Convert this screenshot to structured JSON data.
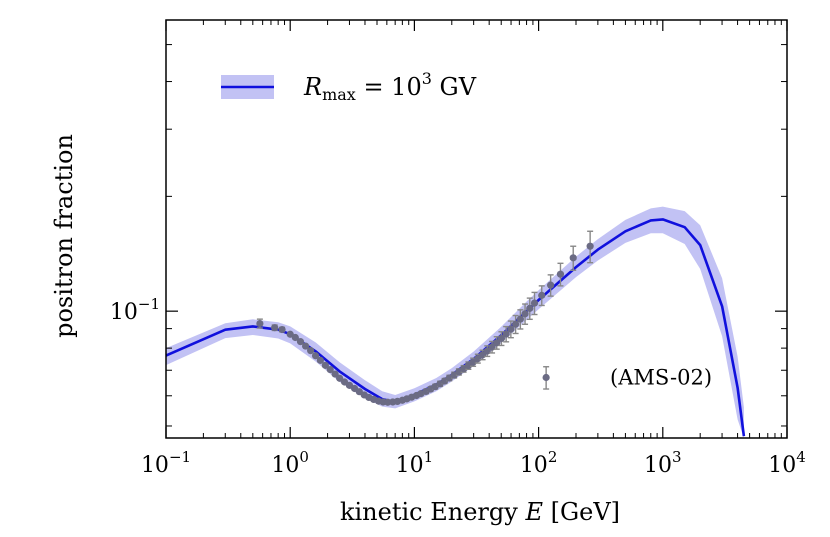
{
  "chart_data": {
    "type": "line",
    "title": "",
    "xlabel": "kinetic Energy E [GeV]",
    "xlabel_parts": {
      "text": "kinetic Energy ",
      "var": "E",
      "unit": " [GeV]"
    },
    "ylabel": "positron fraction",
    "xscale": "log",
    "yscale": "log",
    "xlim": [
      0.1,
      10000
    ],
    "ylim": [
      0.0465,
      0.58
    ],
    "grid": false,
    "x_ticks": [
      {
        "base": "10",
        "exp": "−1"
      },
      {
        "base": "10",
        "exp": "0"
      },
      {
        "base": "10",
        "exp": "1"
      },
      {
        "base": "10",
        "exp": "2"
      },
      {
        "base": "10",
        "exp": "3"
      },
      {
        "base": "10",
        "exp": "4"
      }
    ],
    "y_ticks": [
      {
        "base": "10",
        "exp": "−1",
        "value": 0.1
      }
    ],
    "legend": {
      "placement": "top-left",
      "entry": {
        "var": "R",
        "sub": "max",
        "eq": " = 10",
        "exp": "3",
        "unit": " GV"
      }
    },
    "annotation": {
      "text": "(AMS-02)",
      "placement": "lower-right"
    },
    "series": [
      {
        "name": "R_max = 10^3 GV",
        "style": "line",
        "color": "#1010dd",
        "band_color": "#c2c2f4",
        "x": [
          0.1,
          0.3,
          0.5,
          0.8,
          1,
          1.6,
          2.5,
          4,
          5.5,
          7,
          10,
          15,
          20,
          30,
          50,
          80,
          100,
          200,
          300,
          500,
          800,
          1000,
          1500,
          2000,
          3000,
          4000,
          4500
        ],
        "values": [
          0.0765,
          0.0894,
          0.0912,
          0.0894,
          0.087,
          0.0785,
          0.0695,
          0.0625,
          0.0588,
          0.0578,
          0.0604,
          0.0642,
          0.0681,
          0.075,
          0.0865,
          0.1,
          0.107,
          0.1305,
          0.145,
          0.162,
          0.173,
          0.174,
          0.166,
          0.149,
          0.103,
          0.063,
          0.047
        ],
        "band_low": [
          0.0722,
          0.085,
          0.0866,
          0.0848,
          0.0823,
          0.0738,
          0.0652,
          0.0591,
          0.0562,
          0.0556,
          0.058,
          0.0617,
          0.0654,
          0.0718,
          0.0825,
          0.0948,
          0.1012,
          0.1228,
          0.1358,
          0.151,
          0.16,
          0.16,
          0.15,
          0.129,
          0.086,
          0.052,
          0.0465
        ],
        "band_high": [
          0.08,
          0.093,
          0.0952,
          0.0935,
          0.0912,
          0.0828,
          0.0735,
          0.0659,
          0.0617,
          0.0603,
          0.0628,
          0.0668,
          0.0709,
          0.0784,
          0.091,
          0.106,
          0.1135,
          0.139,
          0.1545,
          0.1735,
          0.186,
          0.188,
          0.183,
          0.168,
          0.122,
          0.076,
          0.056
        ]
      },
      {
        "name": "AMS-02",
        "style": "scatter",
        "color": "#6b6b84",
        "error_color": "#888888",
        "x": [
          0.57,
          0.75,
          0.86,
          1.0,
          1.1,
          1.21,
          1.33,
          1.46,
          1.6,
          1.75,
          1.92,
          2.1,
          2.3,
          2.5,
          2.74,
          3.0,
          3.3,
          3.6,
          3.95,
          4.3,
          4.7,
          5.15,
          5.6,
          6.1,
          6.7,
          7.3,
          8.0,
          8.7,
          9.5,
          10.4,
          11.3,
          12.4,
          13.5,
          14.7,
          16.1,
          17.5,
          19.1,
          20.9,
          22.8,
          24.9,
          27.2,
          29.7,
          32.4,
          35.4,
          38.6,
          42.2,
          46.0,
          50.2,
          54.8,
          59.8,
          65.3,
          71.3,
          77.8,
          84.9,
          92.7,
          106,
          125,
          150,
          190,
          260
        ],
        "values": [
          0.0928,
          0.0905,
          0.0895,
          0.087,
          0.0853,
          0.0832,
          0.081,
          0.0788,
          0.0764,
          0.0743,
          0.0721,
          0.0703,
          0.0684,
          0.0667,
          0.0652,
          0.0639,
          0.0627,
          0.0615,
          0.0603,
          0.0594,
          0.0587,
          0.0581,
          0.0578,
          0.0577,
          0.0578,
          0.058,
          0.0584,
          0.0589,
          0.0595,
          0.0601,
          0.0608,
          0.0616,
          0.0625,
          0.0634,
          0.0645,
          0.0656,
          0.0668,
          0.068,
          0.0693,
          0.0706,
          0.072,
          0.0735,
          0.0751,
          0.0768,
          0.0786,
          0.0805,
          0.0826,
          0.0848,
          0.0871,
          0.0897,
          0.0924,
          0.0953,
          0.0984,
          0.1017,
          0.105,
          0.11,
          0.117,
          0.125,
          0.138,
          0.148
        ],
        "err": [
          0.0025,
          0.0015,
          0.0012,
          0.001,
          0.001,
          0.0009,
          0.0009,
          0.0008,
          0.0008,
          0.0008,
          0.0007,
          0.0007,
          0.0007,
          0.0006,
          0.0006,
          0.0006,
          0.0006,
          0.0006,
          0.0006,
          0.0006,
          0.0006,
          0.0006,
          0.0006,
          0.0006,
          0.0006,
          0.0006,
          0.0006,
          0.0006,
          0.0007,
          0.0007,
          0.0007,
          0.0008,
          0.0008,
          0.0009,
          0.001,
          0.001,
          0.0011,
          0.0012,
          0.0013,
          0.0014,
          0.0016,
          0.0018,
          0.002,
          0.0022,
          0.0025,
          0.0028,
          0.0031,
          0.0035,
          0.004,
          0.0045,
          0.005,
          0.0055,
          0.006,
          0.0065,
          0.007,
          0.0065,
          0.0075,
          0.0085,
          0.01,
          0.014
        ],
        "legend_marker_value": 0.067,
        "legend_marker_err": 0.0045
      }
    ]
  }
}
